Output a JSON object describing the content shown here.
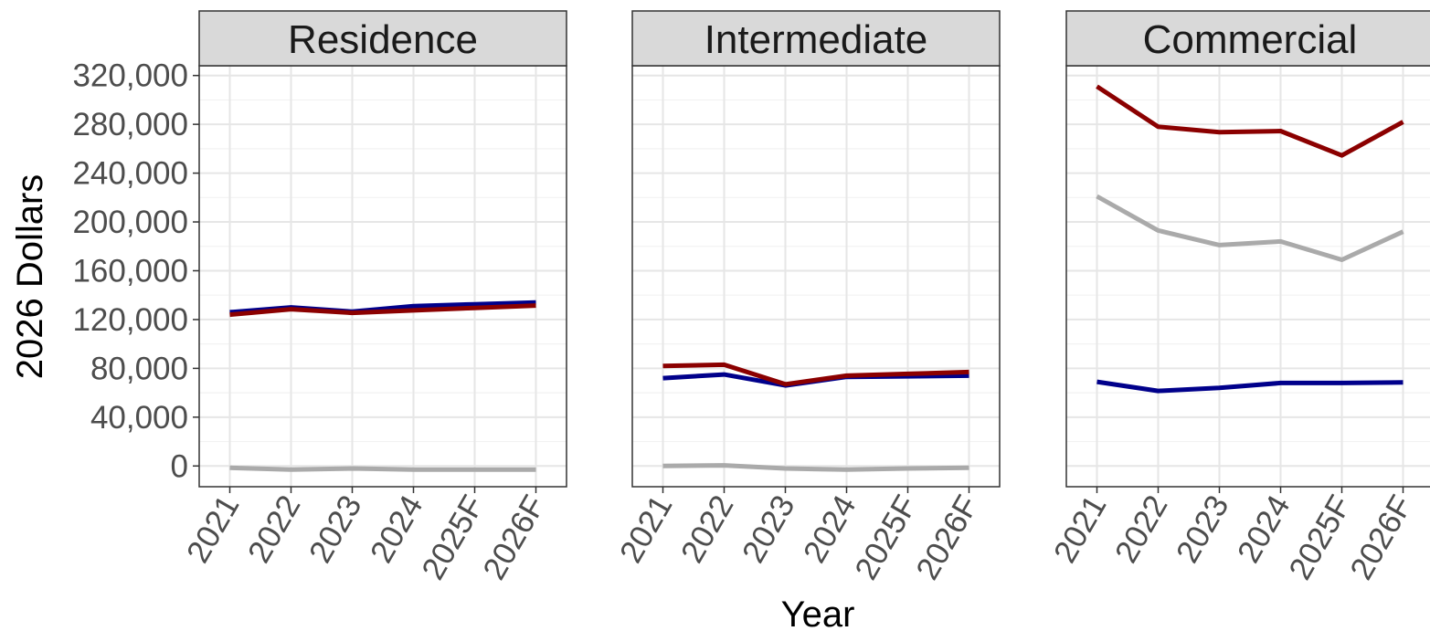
{
  "chart_data": {
    "type": "line",
    "xlabel": "Year",
    "ylabel": "2026 Dollars",
    "x_ticks": [
      "2021",
      "2022",
      "2023",
      "2024",
      "2025F",
      "2026F"
    ],
    "y_ticks": [
      "0",
      "40,000",
      "80,000",
      "120,000",
      "160,000",
      "200,000",
      "240,000",
      "280,000",
      "320,000"
    ],
    "ylim": [
      -17000,
      328000
    ],
    "grid": true,
    "colors": {
      "blue": "#00008b",
      "red": "#8b0000",
      "gray": "#aaaaaa"
    },
    "panels": [
      {
        "title": "Residence",
        "series": [
          {
            "color": "blue",
            "values": [
              126000,
              130000,
              126500,
              131000,
              132500,
              134000
            ]
          },
          {
            "color": "red",
            "values": [
              124000,
              128500,
              125500,
              127500,
              129500,
              131500
            ]
          },
          {
            "color": "gray",
            "values": [
              -1500,
              -3000,
              -2000,
              -3000,
              -3000,
              -3000
            ]
          }
        ]
      },
      {
        "title": "Intermediate",
        "series": [
          {
            "color": "blue",
            "values": [
              72000,
              75000,
              66000,
              73000,
              73500,
              74000
            ]
          },
          {
            "color": "red",
            "values": [
              82000,
              83000,
              67000,
              74000,
              75500,
              77000
            ]
          },
          {
            "color": "gray",
            "values": [
              0,
              500,
              -2000,
              -3000,
              -2000,
              -1500
            ]
          }
        ]
      },
      {
        "title": "Commercial",
        "series": [
          {
            "color": "blue",
            "values": [
              69000,
              61500,
              64000,
              68000,
              68000,
              68500
            ]
          },
          {
            "color": "red",
            "values": [
              311000,
              278000,
              273500,
              274500,
              254500,
              282000
            ]
          },
          {
            "color": "gray",
            "values": [
              221000,
              193000,
              181000,
              184000,
              169000,
              192000
            ]
          }
        ]
      }
    ]
  }
}
